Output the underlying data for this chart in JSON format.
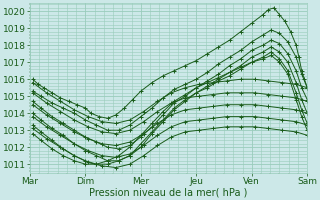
{
  "bg_color": "#cce8e8",
  "grid_color": "#99ccbb",
  "line_color": "#1a5c1a",
  "ylabel_text": "Pression niveau de la mer( hPa )",
  "xticklabels": [
    "Mar",
    "Dim",
    "Mer",
    "Jeu",
    "Ven",
    "Sam"
  ],
  "yticks": [
    1011,
    1012,
    1013,
    1014,
    1015,
    1016,
    1017,
    1018,
    1019,
    1020
  ],
  "ylim": [
    1010.5,
    1020.5
  ],
  "xlim": [
    0.0,
    5.0
  ],
  "xtick_positions": [
    0.0,
    1.0,
    2.0,
    3.0,
    4.0,
    5.0
  ],
  "series": [
    {
      "x": [
        0.05,
        0.15,
        0.25,
        0.4,
        0.55,
        0.7,
        0.85,
        1.0,
        1.1,
        1.25,
        1.4,
        1.55,
        1.7,
        1.85,
        2.0,
        2.2,
        2.4,
        2.6,
        2.8,
        3.0,
        3.2,
        3.4,
        3.6,
        3.8,
        4.0,
        4.2,
        4.3,
        4.4,
        4.5,
        4.6,
        4.7,
        4.8,
        4.85,
        4.9,
        4.95,
        5.0
      ],
      "y": [
        1016.0,
        1015.7,
        1015.5,
        1015.2,
        1014.9,
        1014.7,
        1014.5,
        1014.3,
        1014.0,
        1013.8,
        1013.7,
        1013.9,
        1014.3,
        1014.8,
        1015.3,
        1015.8,
        1016.2,
        1016.5,
        1016.8,
        1017.1,
        1017.5,
        1017.9,
        1018.3,
        1018.8,
        1019.3,
        1019.8,
        1020.1,
        1020.2,
        1019.8,
        1019.4,
        1018.8,
        1018.0,
        1017.3,
        1016.5,
        1016.0,
        1015.5
      ]
    },
    {
      "x": [
        0.05,
        0.2,
        0.4,
        0.6,
        0.8,
        1.0,
        1.2,
        1.4,
        1.6,
        1.8,
        2.0,
        2.2,
        2.4,
        2.6,
        2.8,
        3.0,
        3.2,
        3.4,
        3.6,
        3.8,
        4.0,
        4.2,
        4.35,
        4.5,
        4.65,
        4.8,
        4.9,
        5.0
      ],
      "y": [
        1015.3,
        1015.0,
        1014.6,
        1014.3,
        1014.0,
        1013.6,
        1013.3,
        1013.0,
        1013.0,
        1013.3,
        1013.8,
        1014.3,
        1014.9,
        1015.4,
        1015.7,
        1016.0,
        1016.4,
        1016.9,
        1017.3,
        1017.7,
        1018.2,
        1018.6,
        1018.9,
        1018.7,
        1018.2,
        1017.3,
        1016.3,
        1015.5
      ]
    },
    {
      "x": [
        0.05,
        0.2,
        0.4,
        0.6,
        0.8,
        1.0,
        1.2,
        1.4,
        1.6,
        1.8,
        2.0,
        2.2,
        2.4,
        2.6,
        2.8,
        3.0,
        3.2,
        3.4,
        3.6,
        3.8,
        4.0,
        4.2,
        4.35,
        4.5,
        4.65,
        4.8,
        4.9,
        5.0
      ],
      "y": [
        1014.7,
        1014.3,
        1013.8,
        1013.4,
        1013.0,
        1012.6,
        1012.3,
        1012.0,
        1011.9,
        1012.1,
        1012.6,
        1013.2,
        1013.9,
        1014.6,
        1015.0,
        1015.5,
        1015.9,
        1016.3,
        1016.8,
        1017.2,
        1017.7,
        1018.0,
        1018.3,
        1018.1,
        1017.5,
        1016.5,
        1015.5,
        1014.8
      ]
    },
    {
      "x": [
        0.05,
        0.2,
        0.4,
        0.6,
        0.8,
        1.0,
        1.2,
        1.4,
        1.6,
        1.8,
        2.0,
        2.2,
        2.4,
        2.6,
        2.8,
        3.0,
        3.2,
        3.4,
        3.6,
        3.8,
        4.0,
        4.2,
        4.35,
        4.5,
        4.65,
        4.8,
        4.9,
        5.0
      ],
      "y": [
        1014.0,
        1013.6,
        1013.1,
        1012.7,
        1012.2,
        1011.8,
        1011.5,
        1011.2,
        1011.2,
        1011.5,
        1012.0,
        1012.8,
        1013.5,
        1014.2,
        1014.7,
        1015.2,
        1015.6,
        1016.0,
        1016.4,
        1016.8,
        1017.3,
        1017.6,
        1017.9,
        1017.6,
        1017.0,
        1015.8,
        1014.8,
        1014.0
      ]
    },
    {
      "x": [
        0.05,
        0.2,
        0.4,
        0.6,
        0.8,
        1.0,
        1.2,
        1.4,
        1.6,
        1.8,
        2.0,
        2.2,
        2.4,
        2.6,
        2.8,
        3.0,
        3.2,
        3.4,
        3.6,
        3.8,
        4.0,
        4.2,
        4.35,
        4.5,
        4.65,
        4.8,
        4.9,
        5.0
      ],
      "y": [
        1013.3,
        1012.9,
        1012.4,
        1011.9,
        1011.5,
        1011.2,
        1011.0,
        1011.0,
        1011.2,
        1011.5,
        1012.2,
        1012.9,
        1013.6,
        1014.3,
        1014.8,
        1015.2,
        1015.5,
        1015.9,
        1016.2,
        1016.6,
        1017.0,
        1017.3,
        1017.6,
        1017.2,
        1016.5,
        1015.2,
        1014.2,
        1013.4
      ]
    },
    {
      "x": [
        0.05,
        0.2,
        0.4,
        0.6,
        0.8,
        1.0,
        1.2,
        1.4,
        1.6,
        1.8,
        2.0,
        2.2,
        2.4,
        2.6,
        2.8,
        3.0,
        3.2,
        3.4,
        3.6,
        3.8,
        4.0,
        4.2,
        4.35,
        4.5,
        4.65,
        4.8,
        4.9,
        5.0
      ],
      "y": [
        1012.8,
        1012.4,
        1011.9,
        1011.5,
        1011.2,
        1011.0,
        1011.0,
        1011.2,
        1011.5,
        1012.0,
        1012.7,
        1013.4,
        1014.1,
        1014.7,
        1015.1,
        1015.5,
        1015.8,
        1016.1,
        1016.4,
        1016.7,
        1017.0,
        1017.2,
        1017.4,
        1017.0,
        1016.3,
        1014.8,
        1013.8,
        1013.0
      ]
    },
    {
      "x": [
        0.05,
        0.3,
        0.55,
        0.8,
        1.05,
        1.3,
        1.55,
        1.8,
        2.05,
        2.3,
        2.55,
        2.8,
        3.05,
        3.3,
        3.55,
        3.8,
        4.05,
        4.3,
        4.55,
        4.8,
        5.0
      ],
      "y": [
        1015.8,
        1015.2,
        1014.7,
        1014.2,
        1013.8,
        1013.5,
        1013.4,
        1013.6,
        1014.1,
        1014.7,
        1015.2,
        1015.5,
        1015.7,
        1015.8,
        1015.9,
        1016.0,
        1016.0,
        1015.9,
        1015.8,
        1015.7,
        1015.5
      ]
    },
    {
      "x": [
        0.05,
        0.3,
        0.55,
        0.8,
        1.05,
        1.3,
        1.55,
        1.8,
        2.05,
        2.3,
        2.55,
        2.8,
        3.05,
        3.3,
        3.55,
        3.8,
        4.05,
        4.3,
        4.55,
        4.8,
        5.0
      ],
      "y": [
        1015.2,
        1014.6,
        1014.1,
        1013.6,
        1013.2,
        1012.9,
        1012.8,
        1013.0,
        1013.5,
        1014.1,
        1014.6,
        1014.9,
        1015.0,
        1015.1,
        1015.2,
        1015.2,
        1015.2,
        1015.1,
        1015.0,
        1014.9,
        1014.7
      ]
    },
    {
      "x": [
        0.05,
        0.3,
        0.55,
        0.8,
        1.05,
        1.3,
        1.55,
        1.8,
        2.05,
        2.3,
        2.55,
        2.8,
        3.05,
        3.3,
        3.55,
        3.8,
        4.05,
        4.3,
        4.55,
        4.8,
        5.0
      ],
      "y": [
        1014.5,
        1013.9,
        1013.4,
        1012.9,
        1012.5,
        1012.2,
        1012.1,
        1012.3,
        1012.8,
        1013.4,
        1013.9,
        1014.2,
        1014.3,
        1014.4,
        1014.5,
        1014.5,
        1014.5,
        1014.4,
        1014.3,
        1014.2,
        1014.0
      ]
    },
    {
      "x": [
        0.05,
        0.3,
        0.55,
        0.8,
        1.05,
        1.3,
        1.55,
        1.8,
        2.05,
        2.3,
        2.55,
        2.8,
        3.05,
        3.3,
        3.55,
        3.8,
        4.05,
        4.3,
        4.55,
        4.8,
        5.0
      ],
      "y": [
        1013.8,
        1013.2,
        1012.7,
        1012.2,
        1011.8,
        1011.5,
        1011.4,
        1011.6,
        1012.1,
        1012.7,
        1013.2,
        1013.5,
        1013.6,
        1013.7,
        1013.8,
        1013.8,
        1013.8,
        1013.7,
        1013.6,
        1013.5,
        1013.3
      ]
    },
    {
      "x": [
        0.05,
        0.3,
        0.55,
        0.8,
        1.05,
        1.3,
        1.55,
        1.8,
        2.05,
        2.3,
        2.55,
        2.8,
        3.05,
        3.3,
        3.55,
        3.8,
        4.05,
        4.3,
        4.55,
        4.8,
        5.0
      ],
      "y": [
        1013.1,
        1012.5,
        1012.0,
        1011.5,
        1011.1,
        1010.9,
        1010.8,
        1011.0,
        1011.5,
        1012.1,
        1012.6,
        1012.9,
        1013.0,
        1013.1,
        1013.2,
        1013.2,
        1013.2,
        1013.1,
        1013.0,
        1012.9,
        1012.7
      ]
    }
  ]
}
